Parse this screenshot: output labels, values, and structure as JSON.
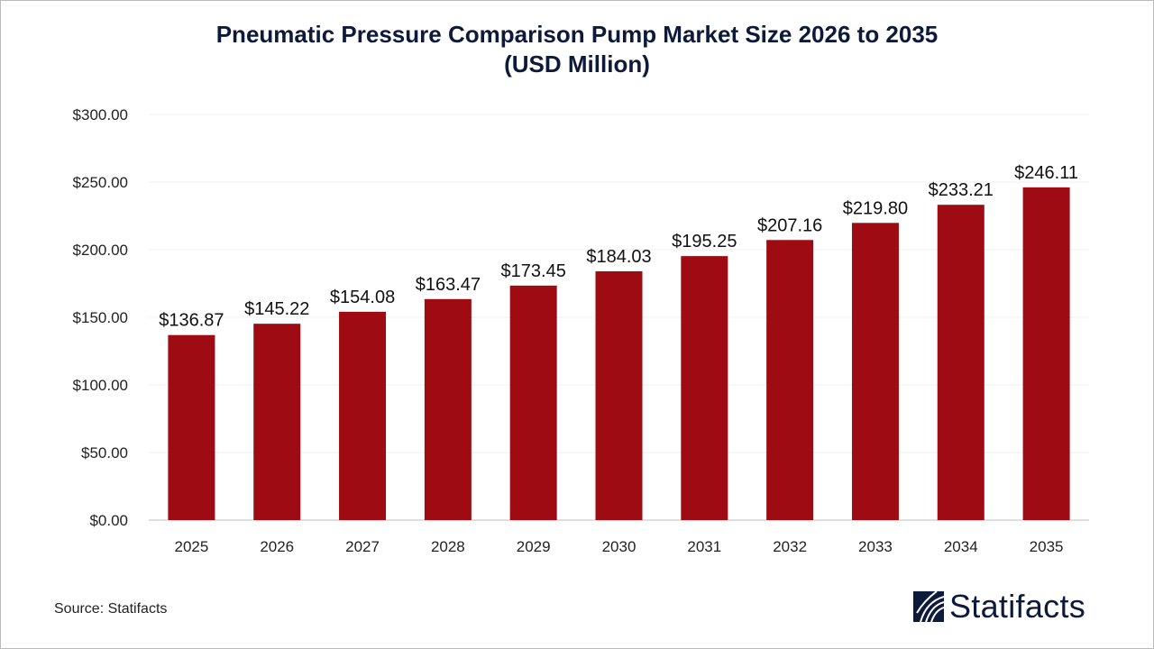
{
  "chart_data": {
    "type": "bar",
    "title": "Pneumatic Pressure Comparison Pump Market Size 2026 to 2035",
    "subtitle": "(USD Million)",
    "categories": [
      "2025",
      "2026",
      "2027",
      "2028",
      "2029",
      "2030",
      "2031",
      "2032",
      "2033",
      "2034",
      "2035"
    ],
    "values": [
      136.87,
      145.22,
      154.08,
      163.47,
      173.45,
      184.03,
      195.25,
      207.16,
      219.8,
      233.21,
      246.11
    ],
    "data_labels": [
      "$136.87",
      "$145.22",
      "$154.08",
      "$163.47",
      "$173.45",
      "$184.03",
      "$195.25",
      "$207.16",
      "$219.80",
      "$233.21",
      "$246.11"
    ],
    "yticks": [
      0,
      50,
      100,
      150,
      200,
      250,
      300
    ],
    "ytick_labels": [
      "$0.00",
      "$50.00",
      "$100.00",
      "$150.00",
      "$200.00",
      "$250.00",
      "$300.00"
    ],
    "ylim": [
      0,
      300
    ],
    "xlabel": "",
    "ylabel": "",
    "grid": true,
    "legend": "none",
    "bar_color": "#9e0b12"
  },
  "source": "Source: Statifacts",
  "logo": {
    "text": "Statifacts",
    "color": "#0d1a3a"
  }
}
